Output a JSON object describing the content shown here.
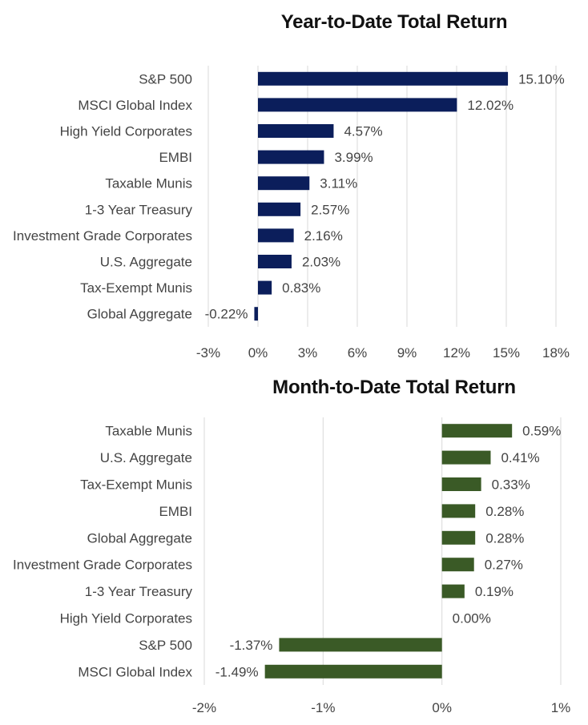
{
  "chart_data": [
    {
      "type": "bar",
      "orientation": "horizontal",
      "title": "Year-to-Date Total Return",
      "categories": [
        "S&P 500",
        "MSCI Global Index",
        "High Yield Corporates",
        "EMBI",
        "Taxable Munis",
        "1-3 Year Treasury",
        "Investment Grade Corporates",
        "U.S. Aggregate",
        "Tax-Exempt Munis",
        "Global Aggregate"
      ],
      "values": [
        15.1,
        12.02,
        4.57,
        3.99,
        3.11,
        2.57,
        2.16,
        2.03,
        0.83,
        -0.22
      ],
      "value_labels": [
        "15.10%",
        "12.02%",
        "4.57%",
        "3.99%",
        "3.11%",
        "2.57%",
        "2.16%",
        "2.03%",
        "0.83%",
        "-0.22%"
      ],
      "xlim": [
        -3,
        18
      ],
      "ticks": [
        -3,
        0,
        3,
        6,
        9,
        12,
        15,
        18
      ],
      "tick_labels": [
        "-3%",
        "0%",
        "3%",
        "6%",
        "9%",
        "12%",
        "15%",
        "18%"
      ],
      "color": "#0b1e5b",
      "grid": true
    },
    {
      "type": "bar",
      "orientation": "horizontal",
      "title": "Month-to-Date Total Return",
      "categories": [
        "Taxable Munis",
        "U.S. Aggregate",
        "Tax-Exempt Munis",
        "EMBI",
        "Global Aggregate",
        "Investment Grade Corporates",
        "1-3 Year Treasury",
        "High Yield Corporates",
        "S&P 500",
        "MSCI Global Index"
      ],
      "values": [
        0.59,
        0.41,
        0.33,
        0.28,
        0.28,
        0.27,
        0.19,
        0.0,
        -1.37,
        -1.49
      ],
      "value_labels": [
        "0.59%",
        "0.41%",
        "0.33%",
        "0.28%",
        "0.28%",
        "0.27%",
        "0.19%",
        "0.00%",
        "-1.37%",
        "-1.49%"
      ],
      "xlim": [
        -2,
        1
      ],
      "ticks": [
        -2,
        -1,
        0,
        1
      ],
      "tick_labels": [
        "-2%",
        "-1%",
        "0%",
        "1%"
      ],
      "color": "#3a5a26",
      "grid": true
    }
  ]
}
